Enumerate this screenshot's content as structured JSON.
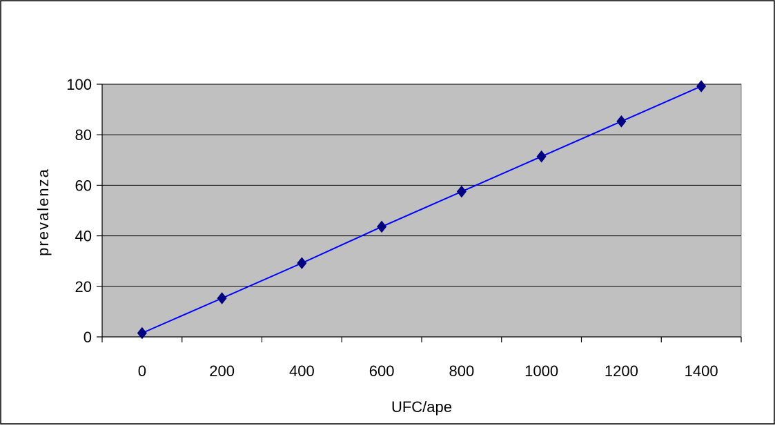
{
  "chart_data": {
    "type": "line",
    "title": "",
    "xlabel": "UFC/ape",
    "ylabel": "prevalenza",
    "x": [
      0,
      200,
      400,
      600,
      800,
      1000,
      1200,
      1400
    ],
    "x_tick_labels": [
      "0",
      "200",
      "400",
      "600",
      "800",
      "1000",
      "1200",
      "1400"
    ],
    "y_tick_labels": [
      "0",
      "20",
      "40",
      "60",
      "80",
      "100"
    ],
    "y_ticks": [
      0,
      20,
      40,
      60,
      80,
      100
    ],
    "ylim": [
      0,
      100
    ],
    "series": [
      {
        "values": [
          1.5,
          15.3,
          29.2,
          43.6,
          57.5,
          71.4,
          85.3,
          99.2
        ],
        "color": "#0000ff",
        "marker": "diamond",
        "marker_color": "#000080"
      }
    ],
    "grid": "horizontal",
    "legend": "none",
    "plot_background": "#c0c0c0"
  }
}
